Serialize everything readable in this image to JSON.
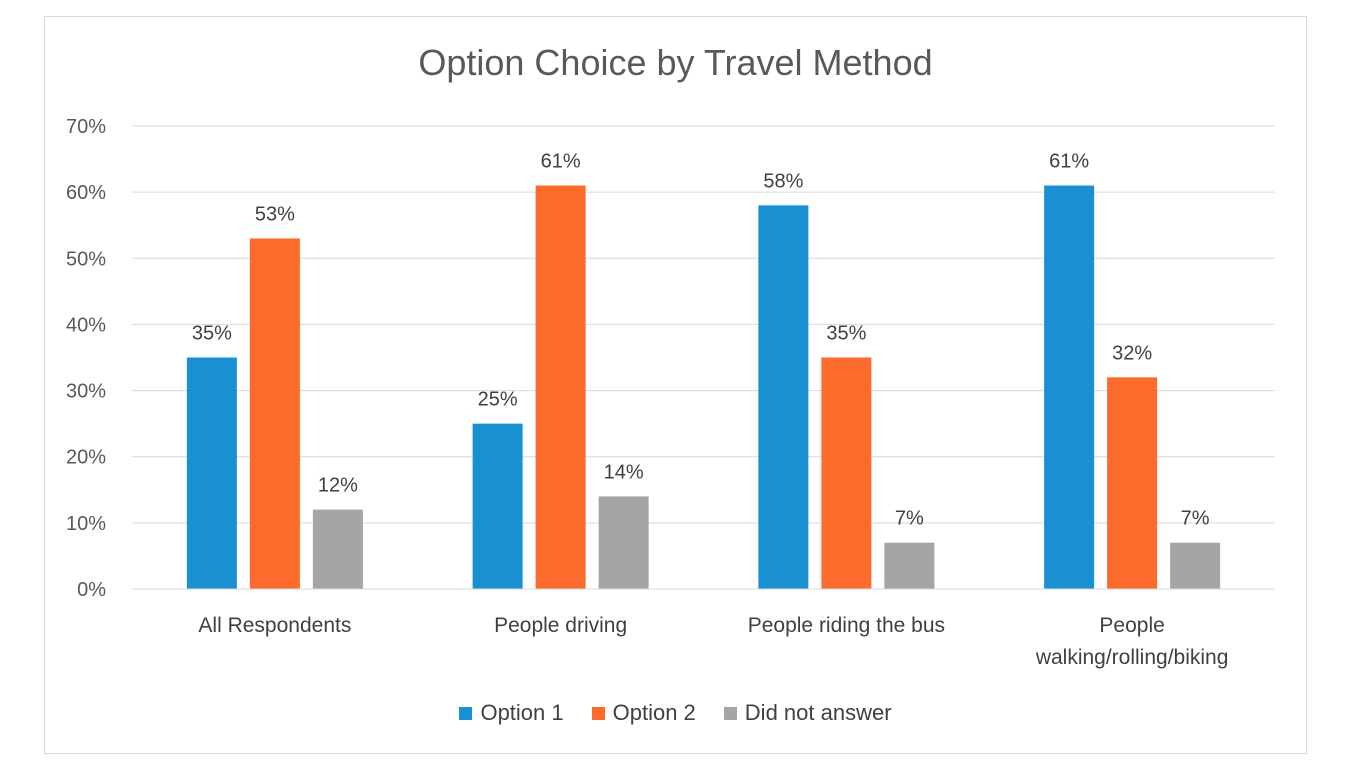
{
  "chart_data": {
    "type": "bar",
    "title": "Option Choice by Travel Method",
    "xlabel": "",
    "ylabel": "",
    "ylim": [
      0,
      70
    ],
    "yticks": [
      "0%",
      "10%",
      "20%",
      "30%",
      "40%",
      "50%",
      "60%",
      "70%"
    ],
    "categories": [
      [
        "All Respondents"
      ],
      [
        "People driving"
      ],
      [
        "People riding the bus"
      ],
      [
        "People",
        "walking/rolling/biking"
      ]
    ],
    "series": [
      {
        "name": "Option 1",
        "color": "#1890d2",
        "values": [
          35,
          25,
          58,
          61
        ],
        "labels": [
          "35%",
          "25%",
          "58%",
          "61%"
        ]
      },
      {
        "name": "Option 2",
        "color": "#fc6a2c",
        "values": [
          53,
          61,
          35,
          32
        ],
        "labels": [
          "53%",
          "61%",
          "35%",
          "32%"
        ]
      },
      {
        "name": "Did not answer",
        "color": "#a5a5a5",
        "values": [
          12,
          14,
          7,
          7
        ],
        "labels": [
          "12%",
          "14%",
          "7%",
          "7%"
        ]
      }
    ],
    "legend_position": "bottom",
    "grid": true
  }
}
